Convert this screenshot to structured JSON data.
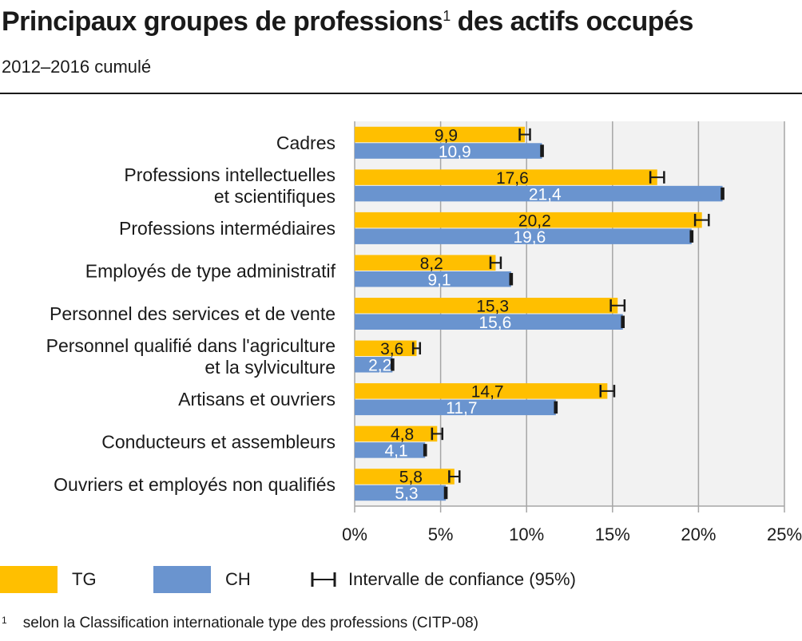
{
  "title": "Principaux groupes de professions",
  "title_sup": "1",
  "subtitle": "2012–2016 cumulé",
  "colors": {
    "tg": "#ffbf00",
    "ch": "#6a94cf",
    "plot_bg": "#f2f2f2",
    "grid": "#a6a6a6"
  },
  "title_suffix": " des actifs occupés",
  "chart_data": {
    "type": "bar",
    "orientation": "horizontal",
    "categories": [
      [
        "Cadres"
      ],
      [
        "Professions intellectuelles",
        "et scientifiques"
      ],
      [
        "Professions intermédiaires"
      ],
      [
        "Employés de type administratif"
      ],
      [
        "Personnel des services et de vente"
      ],
      [
        "Personnel qualifié dans l'agriculture",
        "et la sylviculture"
      ],
      [
        "Artisans et ouvriers"
      ],
      [
        "Conducteurs et assembleurs"
      ],
      [
        "Ouvriers et employés non qualifiés"
      ]
    ],
    "series": [
      {
        "name": "TG",
        "values": [
          9.9,
          17.6,
          20.2,
          8.2,
          15.3,
          3.6,
          14.7,
          4.8,
          5.8
        ],
        "labels": [
          "9,9",
          "17,6",
          "20,2",
          "8,2",
          "15,3",
          "3,6",
          "14,7",
          "4,8",
          "5,8"
        ],
        "ci": [
          [
            9.6,
            10.2
          ],
          [
            17.2,
            18.0
          ],
          [
            19.8,
            20.6
          ],
          [
            7.9,
            8.5
          ],
          [
            14.9,
            15.7
          ],
          [
            3.4,
            3.8
          ],
          [
            14.3,
            15.1
          ],
          [
            4.5,
            5.1
          ],
          [
            5.5,
            6.1
          ]
        ]
      },
      {
        "name": "CH",
        "values": [
          10.9,
          21.4,
          19.6,
          9.1,
          15.6,
          2.2,
          11.7,
          4.1,
          5.3
        ],
        "labels": [
          "10,9",
          "21,4",
          "19,6",
          "9,1",
          "15,6",
          "2,2",
          "11,7",
          "4,1",
          "5,3"
        ],
        "ci": [
          [
            10.85,
            10.95
          ],
          [
            21.35,
            21.45
          ],
          [
            19.55,
            19.65
          ],
          [
            9.05,
            9.15
          ],
          [
            15.55,
            15.65
          ],
          [
            2.15,
            2.25
          ],
          [
            11.65,
            11.75
          ],
          [
            4.05,
            4.15
          ],
          [
            5.25,
            5.35
          ]
        ]
      }
    ],
    "xlim": [
      0,
      25
    ],
    "xticks": [
      0,
      5,
      10,
      15,
      20,
      25
    ],
    "xtick_labels": [
      "0%",
      "5%",
      "10%",
      "15%",
      "20%",
      "25%"
    ],
    "grid": true,
    "legend_position": "bottom",
    "ci_legend_label": "Intervalle de confiance (95%)"
  },
  "footnote_mark": "1",
  "footnote": "selon la Classification internationale type des professions (CITP-08)"
}
